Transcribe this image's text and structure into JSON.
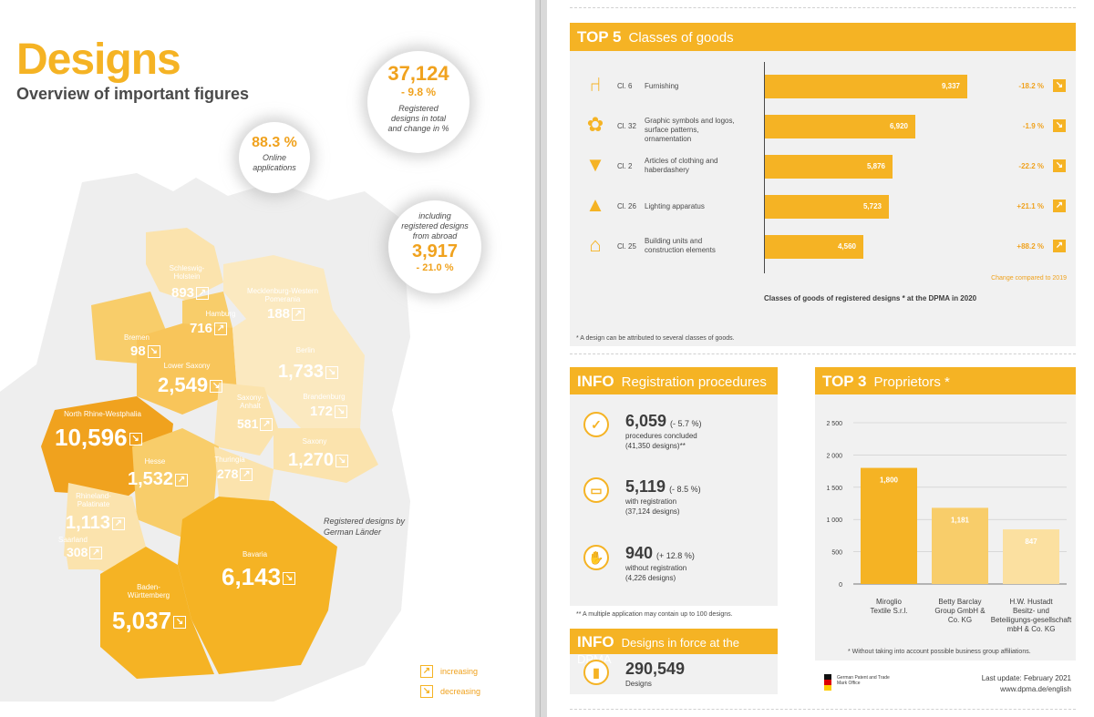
{
  "left": {
    "title": "Designs",
    "subtitle": "Overview of important figures",
    "circle_total": {
      "value": "37,124",
      "change": "- 9.8 %",
      "caption": "Registered designs in total and change in %"
    },
    "circle_online": {
      "value": "88.3 %",
      "caption": "Online applications"
    },
    "circle_abroad": {
      "caption": "including registered designs from abroad",
      "value": "3,917",
      "change": "- 21.0 %"
    },
    "map_caption": "Registered designs by German Länder",
    "legend": {
      "increasing": "increasing",
      "decreasing": "decreasing"
    },
    "states": [
      {
        "name": "Schleswig-Holstein",
        "value": "893",
        "trend": "up"
      },
      {
        "name": "Mecklenburg-Western Pomerania",
        "value": "188",
        "trend": "up"
      },
      {
        "name": "Hamburg",
        "value": "716",
        "trend": "up"
      },
      {
        "name": "Bremen",
        "value": "98",
        "trend": "down"
      },
      {
        "name": "Lower Saxony",
        "value": "2,549",
        "trend": "down"
      },
      {
        "name": "Berlin",
        "value": "1,733",
        "trend": "down"
      },
      {
        "name": "Saxony-Anhalt",
        "value": "581",
        "trend": "up"
      },
      {
        "name": "Brandenburg",
        "value": "172",
        "trend": "down"
      },
      {
        "name": "North Rhine-Westphalia",
        "value": "10,596",
        "trend": "down"
      },
      {
        "name": "Saxony",
        "value": "1,270",
        "trend": "down"
      },
      {
        "name": "Hesse",
        "value": "1,532",
        "trend": "up"
      },
      {
        "name": "Thuringia",
        "value": "278",
        "trend": "up"
      },
      {
        "name": "Rhineland-Palatinate",
        "value": "1,113",
        "trend": "up"
      },
      {
        "name": "Saarland",
        "value": "308",
        "trend": "up"
      },
      {
        "name": "Bavaria",
        "value": "6,143",
        "trend": "down"
      },
      {
        "name": "Baden-Württemberg",
        "value": "5,037",
        "trend": "down"
      }
    ]
  },
  "top5": {
    "key": "TOP 5",
    "label": "Classes of goods",
    "change_note": "Change compared to 2019",
    "chart_caption": "Classes of goods of registered designs * at the DPMA in 2020",
    "footnote": "* A design can be attributed to several classes of goods.",
    "rows": [
      {
        "cl": "Cl. 6",
        "desc": "Furnishing",
        "value_label": "9,337",
        "change": "-18.2 %",
        "trend": "down",
        "icon": "chair-icon"
      },
      {
        "cl": "Cl. 32",
        "desc": "Graphic symbols and logos, surface patterns, ornamentation",
        "value_label": "6,920",
        "change": "-1.9 %",
        "trend": "down",
        "icon": "ornament-icon"
      },
      {
        "cl": "Cl. 2",
        "desc": "Articles of clothing and haberdashery",
        "value_label": "5,876",
        "change": "-22.2 %",
        "trend": "down",
        "icon": "shirt-icon"
      },
      {
        "cl": "Cl. 26",
        "desc": "Lighting apparatus",
        "value_label": "5,723",
        "change": "+21.1 %",
        "trend": "up",
        "icon": "lamp-icon"
      },
      {
        "cl": "Cl. 25",
        "desc": "Building units and construction elements",
        "value_label": "4,560",
        "change": "+88.2 %",
        "trend": "up",
        "icon": "house-icon"
      }
    ]
  },
  "info1": {
    "key": "INFO",
    "label": "Registration procedures",
    "items": [
      {
        "num": "6,059",
        "pct": "(- 5.7 %)",
        "l1": "procedures concluded",
        "l2": "(41,350 designs)**",
        "icon": "check-icon"
      },
      {
        "num": "5,119",
        "pct": "(- 8.5 %)",
        "l1": "with registration",
        "l2": "(37,124 designs)",
        "icon": "monitor-icon"
      },
      {
        "num": "940",
        "pct": "(+ 12.8 %)",
        "l1": "without registration",
        "l2": "(4,226 designs)",
        "icon": "hand-icon"
      }
    ],
    "footnote": "** A multiple application may contain up to 100 designs."
  },
  "info2": {
    "key": "INFO",
    "label": "Designs in force at the DPMA",
    "num": "290,549",
    "desc": "Designs"
  },
  "top3": {
    "key": "TOP 3",
    "label": "Proprietors *",
    "footnote": "* Without taking into account possible business group affiliations."
  },
  "footer": {
    "agency": "German Patent and Trade Mark Office",
    "update": "Last update: February 2021",
    "url": "www.dpma.de/english"
  },
  "chart_data": [
    {
      "type": "bar",
      "orientation": "horizontal",
      "title": "Classes of goods of registered designs * at the DPMA in 2020",
      "categories": [
        "Furnishing",
        "Graphic symbols and logos, surface patterns, ornamentation",
        "Articles of clothing and haberdashery",
        "Lighting apparatus",
        "Building units and construction elements"
      ],
      "values": [
        9337,
        6920,
        5876,
        5723,
        4560
      ],
      "xlim": [
        0,
        9337
      ]
    },
    {
      "type": "bar",
      "categories": [
        "Miroglio Textile S.r.l.",
        "Betty Barclay Group GmbH & Co. KG",
        "H.W. Hustadt Besitz- und Beteiligungs-gesellschaft mbH & Co. KG"
      ],
      "values": [
        1800,
        1181,
        847
      ],
      "value_labels": [
        "1,800",
        "1,181",
        "847"
      ],
      "ylim": [
        0,
        2500
      ],
      "yticks": [
        0,
        500,
        1000,
        1500,
        2000,
        2500
      ],
      "ytick_labels": [
        "0",
        "500",
        "1 000",
        "1 500",
        "2 000",
        "2 500"
      ],
      "grid": true,
      "colors": [
        "#f5b324",
        "#f8cd6a",
        "#fbe0a0"
      ]
    },
    {
      "type": "map",
      "title": "Registered designs by German Länder",
      "regions": [
        "Schleswig-Holstein",
        "Mecklenburg-Western Pomerania",
        "Hamburg",
        "Bremen",
        "Lower Saxony",
        "Berlin",
        "Saxony-Anhalt",
        "Brandenburg",
        "North Rhine-Westphalia",
        "Saxony",
        "Hesse",
        "Thuringia",
        "Rhineland-Palatinate",
        "Saarland",
        "Bavaria",
        "Baden-Württemberg"
      ],
      "values": [
        893,
        188,
        716,
        98,
        2549,
        1733,
        581,
        172,
        10596,
        1270,
        1532,
        278,
        1113,
        308,
        6143,
        5037
      ]
    }
  ],
  "colors": {
    "accent": "#f5b324",
    "accent_dark": "#f0a21e",
    "panel": "#f1f1f1",
    "text": "#3d3d3d"
  }
}
